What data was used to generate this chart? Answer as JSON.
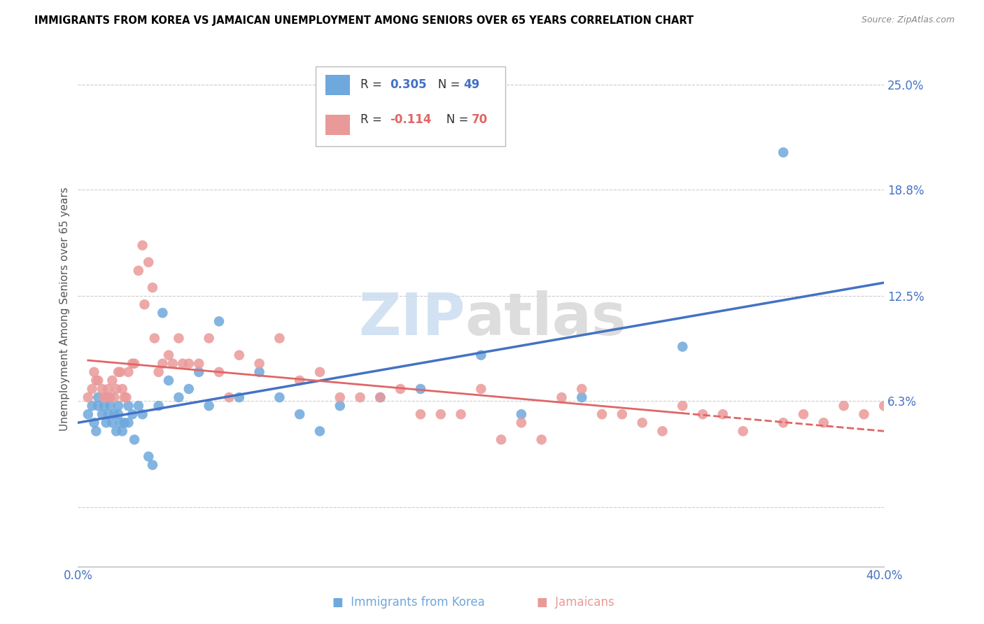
{
  "title": "IMMIGRANTS FROM KOREA VS JAMAICAN UNEMPLOYMENT AMONG SENIORS OVER 65 YEARS CORRELATION CHART",
  "source": "Source: ZipAtlas.com",
  "ylabel": "Unemployment Among Seniors over 65 years",
  "x_min": 0.0,
  "x_max": 0.4,
  "y_min": -0.035,
  "y_max": 0.27,
  "y_tick_labels_right": [
    "25.0%",
    "18.8%",
    "12.5%",
    "6.3%",
    ""
  ],
  "y_tick_vals_right": [
    0.25,
    0.188,
    0.125,
    0.063,
    0.0
  ],
  "korea_color": "#6fa8dc",
  "jamaica_color": "#ea9999",
  "korea_line_color": "#4472c4",
  "jamaica_line_color": "#e06666",
  "legend_korea_R": "0.305",
  "legend_korea_N": "49",
  "legend_jamaica_R": "-0.114",
  "legend_jamaica_N": "70",
  "korea_scatter_x": [
    0.005,
    0.007,
    0.008,
    0.009,
    0.01,
    0.01,
    0.012,
    0.013,
    0.014,
    0.015,
    0.015,
    0.016,
    0.017,
    0.018,
    0.019,
    0.02,
    0.02,
    0.021,
    0.022,
    0.023,
    0.025,
    0.025,
    0.027,
    0.028,
    0.03,
    0.032,
    0.035,
    0.037,
    0.04,
    0.042,
    0.045,
    0.05,
    0.055,
    0.06,
    0.065,
    0.07,
    0.08,
    0.09,
    0.1,
    0.11,
    0.12,
    0.13,
    0.15,
    0.17,
    0.2,
    0.22,
    0.25,
    0.3,
    0.35
  ],
  "korea_scatter_y": [
    0.055,
    0.06,
    0.05,
    0.045,
    0.065,
    0.06,
    0.055,
    0.06,
    0.05,
    0.065,
    0.055,
    0.06,
    0.05,
    0.055,
    0.045,
    0.055,
    0.06,
    0.05,
    0.045,
    0.05,
    0.06,
    0.05,
    0.055,
    0.04,
    0.06,
    0.055,
    0.03,
    0.025,
    0.06,
    0.115,
    0.075,
    0.065,
    0.07,
    0.08,
    0.06,
    0.11,
    0.065,
    0.08,
    0.065,
    0.055,
    0.045,
    0.06,
    0.065,
    0.07,
    0.09,
    0.055,
    0.065,
    0.095,
    0.21
  ],
  "jamaica_scatter_x": [
    0.005,
    0.007,
    0.008,
    0.009,
    0.01,
    0.012,
    0.013,
    0.014,
    0.015,
    0.016,
    0.017,
    0.018,
    0.019,
    0.02,
    0.021,
    0.022,
    0.023,
    0.024,
    0.025,
    0.027,
    0.028,
    0.03,
    0.032,
    0.033,
    0.035,
    0.037,
    0.038,
    0.04,
    0.042,
    0.045,
    0.047,
    0.05,
    0.052,
    0.055,
    0.06,
    0.065,
    0.07,
    0.075,
    0.08,
    0.09,
    0.1,
    0.11,
    0.12,
    0.13,
    0.14,
    0.15,
    0.16,
    0.17,
    0.18,
    0.19,
    0.2,
    0.21,
    0.22,
    0.23,
    0.24,
    0.25,
    0.26,
    0.27,
    0.28,
    0.29,
    0.3,
    0.31,
    0.32,
    0.33,
    0.35,
    0.36,
    0.37,
    0.38,
    0.39,
    0.4
  ],
  "jamaica_scatter_y": [
    0.065,
    0.07,
    0.08,
    0.075,
    0.075,
    0.07,
    0.065,
    0.065,
    0.07,
    0.065,
    0.075,
    0.065,
    0.07,
    0.08,
    0.08,
    0.07,
    0.065,
    0.065,
    0.08,
    0.085,
    0.085,
    0.14,
    0.155,
    0.12,
    0.145,
    0.13,
    0.1,
    0.08,
    0.085,
    0.09,
    0.085,
    0.1,
    0.085,
    0.085,
    0.085,
    0.1,
    0.08,
    0.065,
    0.09,
    0.085,
    0.1,
    0.075,
    0.08,
    0.065,
    0.065,
    0.065,
    0.07,
    0.055,
    0.055,
    0.055,
    0.07,
    0.04,
    0.05,
    0.04,
    0.065,
    0.07,
    0.055,
    0.055,
    0.05,
    0.045,
    0.06,
    0.055,
    0.055,
    0.045,
    0.05,
    0.055,
    0.05,
    0.06,
    0.055,
    0.06
  ]
}
